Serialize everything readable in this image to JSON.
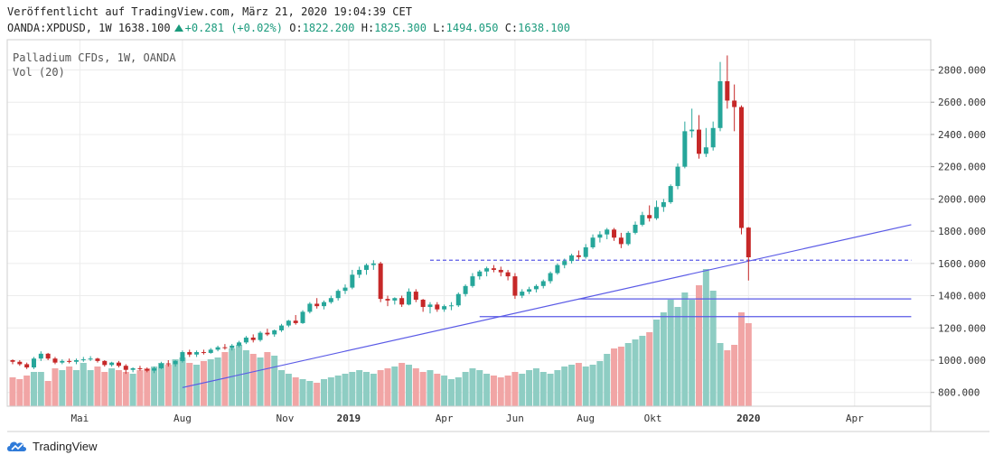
{
  "header": {
    "published": "Veröffentlicht auf TradingView.com, März 21, 2020 19:04:39 CET",
    "symbol": "OANDA:XPDUSD, 1W",
    "last": "1638.100",
    "change": "+0.281 (+0.02%)",
    "o_label": "O:",
    "o_value": "1822.200",
    "h_label": "H:",
    "h_value": "1825.300",
    "l_label": "L:",
    "l_value": "1494.050",
    "c_label": "C:",
    "c_value": "1638.100"
  },
  "legend": {
    "title": "Palladium CFDs, 1W, OANDA",
    "volume": "Vol (20)"
  },
  "footer": {
    "brand": "TradingView"
  },
  "colors": {
    "up": "#26a69a",
    "down": "#c62828",
    "vol_up": "#8ecdc3",
    "vol_down": "#f1a5a5",
    "trendline": "#5a5ae6",
    "grid": "#ececec"
  },
  "icons": {
    "logo": "tradingview-cloud-icon",
    "change_arrow": "triangle-up-icon"
  },
  "chart_data": {
    "type": "candlestick",
    "y_axis": {
      "min": 700,
      "max": 2950,
      "ticks": [
        "800.000",
        "1000.000",
        "1200.000",
        "1400.000",
        "1600.000",
        "1800.000",
        "2000.000",
        "2200.000",
        "2400.000",
        "2600.000",
        "2800.000"
      ],
      "position": "right"
    },
    "x_axis": {
      "labels": [
        "Mai",
        "Aug",
        "Nov",
        "2019",
        "Apr",
        "Jun",
        "Aug",
        "Okt",
        "2020",
        "Apr"
      ]
    },
    "grid": true,
    "candles": [
      [
        1000,
        1005,
        975,
        990
      ],
      [
        990,
        1000,
        965,
        975
      ],
      [
        975,
        985,
        945,
        955
      ],
      [
        955,
        1020,
        945,
        1010
      ],
      [
        1010,
        1055,
        995,
        1040
      ],
      [
        1040,
        1045,
        1000,
        1010
      ],
      [
        1010,
        1020,
        975,
        985
      ],
      [
        985,
        1005,
        975,
        995
      ],
      [
        995,
        1010,
        980,
        990
      ],
      [
        990,
        1010,
        975,
        1000
      ],
      [
        1000,
        1020,
        990,
        1005
      ],
      [
        1005,
        1025,
        995,
        1010
      ],
      [
        1010,
        1015,
        985,
        995
      ],
      [
        995,
        1000,
        960,
        970
      ],
      [
        970,
        990,
        960,
        985
      ],
      [
        985,
        995,
        955,
        965
      ],
      [
        965,
        975,
        915,
        940
      ],
      [
        940,
        955,
        925,
        950
      ],
      [
        950,
        965,
        935,
        945
      ],
      [
        945,
        955,
        925,
        935
      ],
      [
        935,
        960,
        920,
        950
      ],
      [
        950,
        990,
        945,
        980
      ],
      [
        980,
        1000,
        960,
        975
      ],
      [
        975,
        1000,
        960,
        995
      ],
      [
        995,
        1060,
        985,
        1050
      ],
      [
        1050,
        1065,
        1020,
        1035
      ],
      [
        1035,
        1060,
        1020,
        1050
      ],
      [
        1050,
        1065,
        1035,
        1045
      ],
      [
        1045,
        1075,
        1040,
        1065
      ],
      [
        1065,
        1090,
        1055,
        1080
      ],
      [
        1080,
        1100,
        1065,
        1075
      ],
      [
        1075,
        1100,
        1060,
        1090
      ],
      [
        1090,
        1120,
        1080,
        1110
      ],
      [
        1110,
        1150,
        1100,
        1140
      ],
      [
        1140,
        1160,
        1110,
        1125
      ],
      [
        1125,
        1180,
        1115,
        1170
      ],
      [
        1170,
        1195,
        1150,
        1160
      ],
      [
        1160,
        1190,
        1145,
        1185
      ],
      [
        1185,
        1225,
        1175,
        1215
      ],
      [
        1215,
        1250,
        1205,
        1245
      ],
      [
        1245,
        1280,
        1220,
        1230
      ],
      [
        1230,
        1310,
        1225,
        1300
      ],
      [
        1300,
        1360,
        1290,
        1350
      ],
      [
        1350,
        1385,
        1320,
        1335
      ],
      [
        1335,
        1370,
        1315,
        1360
      ],
      [
        1360,
        1400,
        1350,
        1385
      ],
      [
        1385,
        1440,
        1370,
        1430
      ],
      [
        1430,
        1470,
        1410,
        1450
      ],
      [
        1450,
        1560,
        1440,
        1530
      ],
      [
        1530,
        1580,
        1510,
        1560
      ],
      [
        1560,
        1600,
        1530,
        1590
      ],
      [
        1590,
        1620,
        1560,
        1600
      ],
      [
        1600,
        1610,
        1360,
        1380
      ],
      [
        1380,
        1400,
        1335,
        1370
      ],
      [
        1370,
        1390,
        1345,
        1385
      ],
      [
        1385,
        1400,
        1330,
        1345
      ],
      [
        1345,
        1445,
        1340,
        1425
      ],
      [
        1425,
        1440,
        1360,
        1375
      ],
      [
        1375,
        1380,
        1300,
        1330
      ],
      [
        1330,
        1360,
        1290,
        1345
      ],
      [
        1345,
        1360,
        1300,
        1315
      ],
      [
        1315,
        1345,
        1300,
        1335
      ],
      [
        1335,
        1360,
        1310,
        1340
      ],
      [
        1340,
        1420,
        1330,
        1410
      ],
      [
        1410,
        1470,
        1395,
        1460
      ],
      [
        1460,
        1540,
        1450,
        1520
      ],
      [
        1520,
        1560,
        1500,
        1550
      ],
      [
        1550,
        1580,
        1520,
        1570
      ],
      [
        1570,
        1590,
        1545,
        1560
      ],
      [
        1560,
        1580,
        1520,
        1545
      ],
      [
        1545,
        1560,
        1495,
        1520
      ],
      [
        1520,
        1540,
        1380,
        1400
      ],
      [
        1400,
        1440,
        1385,
        1425
      ],
      [
        1425,
        1455,
        1410,
        1440
      ],
      [
        1440,
        1470,
        1420,
        1460
      ],
      [
        1460,
        1500,
        1445,
        1490
      ],
      [
        1490,
        1550,
        1475,
        1540
      ],
      [
        1540,
        1600,
        1530,
        1590
      ],
      [
        1590,
        1630,
        1570,
        1615
      ],
      [
        1615,
        1660,
        1600,
        1650
      ],
      [
        1650,
        1680,
        1625,
        1640
      ],
      [
        1640,
        1720,
        1630,
        1700
      ],
      [
        1700,
        1780,
        1690,
        1760
      ],
      [
        1760,
        1800,
        1730,
        1780
      ],
      [
        1780,
        1820,
        1750,
        1810
      ],
      [
        1810,
        1820,
        1740,
        1760
      ],
      [
        1760,
        1790,
        1695,
        1720
      ],
      [
        1720,
        1800,
        1710,
        1790
      ],
      [
        1790,
        1860,
        1780,
        1840
      ],
      [
        1840,
        1920,
        1830,
        1900
      ],
      [
        1900,
        1960,
        1860,
        1880
      ],
      [
        1880,
        1990,
        1870,
        1950
      ],
      [
        1950,
        2000,
        1920,
        1980
      ],
      [
        1980,
        2090,
        1970,
        2080
      ],
      [
        2080,
        2220,
        2060,
        2200
      ],
      [
        2200,
        2480,
        2190,
        2420
      ],
      [
        2420,
        2560,
        2380,
        2430
      ],
      [
        2430,
        2520,
        2250,
        2280
      ],
      [
        2280,
        2440,
        2260,
        2320
      ],
      [
        2320,
        2480,
        2300,
        2440
      ],
      [
        2440,
        2850,
        2420,
        2730
      ],
      [
        2730,
        2890,
        2560,
        2610
      ],
      [
        2610,
        2710,
        2420,
        2570
      ],
      [
        2570,
        2580,
        1780,
        1820
      ],
      [
        1822.2,
        1825.3,
        1494.05,
        1638.1
      ]
    ],
    "volume": [
      {
        "range": [
          0,
          10
        ],
        "values": [
          32,
          30,
          34,
          38,
          38,
          28,
          42,
          40,
          44,
          40
        ]
      },
      {
        "range": [
          10,
          20
        ],
        "values": [
          48,
          40,
          44,
          38,
          42,
          40,
          38,
          36,
          40,
          42
        ]
      },
      {
        "range": [
          20,
          30
        ],
        "values": [
          44,
          48,
          46,
          52,
          54,
          48,
          46,
          50,
          52,
          54
        ]
      },
      {
        "range": [
          30,
          40
        ],
        "values": [
          60,
          64,
          68,
          62,
          58,
          54,
          60,
          56,
          40,
          36
        ]
      },
      {
        "range": [
          40,
          50
        ],
        "values": [
          32,
          30,
          28,
          26,
          30,
          32,
          34,
          36,
          38,
          40
        ]
      },
      {
        "range": [
          50,
          60
        ],
        "values": [
          38,
          36,
          40,
          42,
          44,
          48,
          46,
          42,
          38,
          40
        ]
      },
      {
        "range": [
          60,
          70
        ],
        "values": [
          36,
          34,
          30,
          32,
          38,
          42,
          40,
          36,
          34,
          32
        ]
      },
      {
        "range": [
          70,
          80
        ],
        "values": [
          34,
          38,
          36,
          40,
          42,
          38,
          36,
          40,
          44,
          46
        ]
      },
      {
        "range": [
          80,
          90
        ],
        "values": [
          48,
          44,
          46,
          50,
          58,
          64,
          66,
          70,
          74,
          78
        ]
      },
      {
        "range": [
          90,
          100
        ],
        "values": [
          82,
          96,
          104,
          118,
          110,
          126,
          118,
          134,
          152,
          128
        ]
      },
      {
        "range": [
          100,
          106
        ],
        "values": [
          70,
          62,
          68,
          104,
          92,
          88
        ]
      }
    ],
    "volume_note": "Volume series values are relative; volume axis unlabeled.",
    "annotations": [
      {
        "type": "trendline",
        "from": [
          24,
          830
        ],
        "to": [
          127,
          1840
        ]
      },
      {
        "type": "dashed-hline",
        "y": 1620,
        "from": 59,
        "to": 127
      },
      {
        "type": "hline",
        "y": 1380,
        "from": 80,
        "to": 127
      },
      {
        "type": "hline",
        "y": 1270,
        "from": 66,
        "to": 127
      }
    ]
  }
}
